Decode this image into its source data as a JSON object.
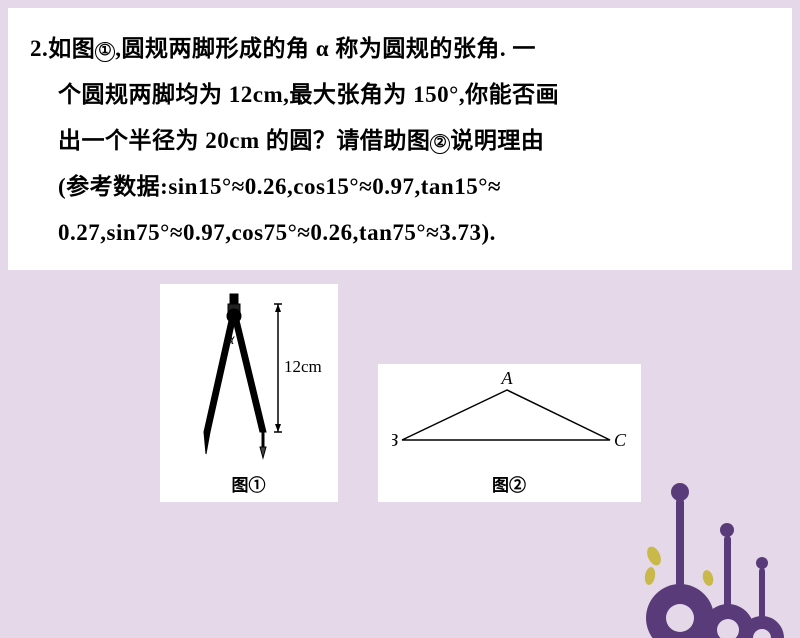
{
  "problem": {
    "number": "2.",
    "line1_a": "如图",
    "circ1": "①",
    "line1_b": ",圆规两脚形成的角 α 称为圆规的张角. 一",
    "line2": "个圆规两脚均为 12cm,最大张角为 150°,你能否画",
    "line3_a": "出一个半径为 20cm 的圆？请借助图",
    "circ2": "②",
    "line3_b": "说明理由",
    "line4": "(参考数据:sin15°≈0.26,cos15°≈0.97,tan15°≈",
    "line5": "0.27,sin75°≈0.97,cos75°≈0.26,tan75°≈3.73)."
  },
  "figure1": {
    "caption": "图①",
    "leg_label": "12cm",
    "angle_label": "α",
    "colors": {
      "stroke": "#000000",
      "fill": "#000000",
      "bg": "#ffffff"
    }
  },
  "figure2": {
    "caption": "图②",
    "labels": {
      "A": "A",
      "B": "B",
      "C": "C"
    },
    "points": {
      "A": [
        115,
        18
      ],
      "B": [
        10,
        68
      ],
      "C": [
        218,
        68
      ]
    },
    "stroke": "#000000",
    "fontsize": 18
  },
  "decor": {
    "purple": "#5a3b7a",
    "yellow": "#c9b84a",
    "bg": "#e5d9e9"
  }
}
